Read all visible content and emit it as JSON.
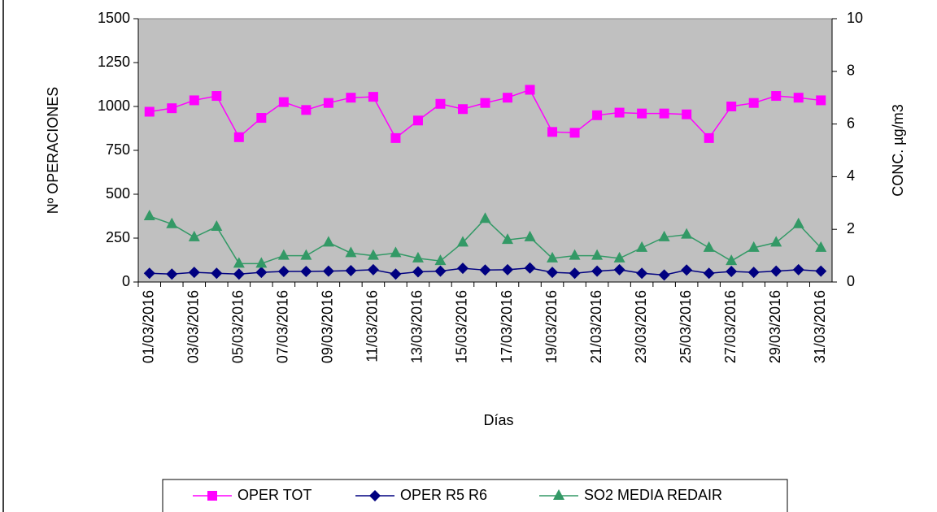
{
  "chart_data": {
    "type": "line",
    "y_label": "Nº OPERACIONES",
    "y2_label": "CONC.  µg/m3",
    "x_label": "Días",
    "categories": [
      "01/03/2016",
      null,
      "03/03/2016",
      null,
      "05/03/2016",
      null,
      "07/03/2016",
      null,
      "09/03/2016",
      null,
      "11/03/2016",
      null,
      "13/03/2016",
      null,
      "15/03/2016",
      null,
      "17/03/2016",
      null,
      "19/03/2016",
      null,
      "21/03/2016",
      null,
      "23/03/2016",
      null,
      "25/03/2016",
      null,
      "27/03/2016",
      null,
      "29/03/2016",
      null,
      "31/03/2016"
    ],
    "series": [
      {
        "name": "OPER TOT",
        "color": "#ff00ff",
        "marker": "square",
        "values": [
          970,
          990,
          1035,
          1060,
          825,
          935,
          1025,
          980,
          1020,
          1050,
          1055,
          820,
          920,
          1015,
          985,
          1020,
          1050,
          1095,
          855,
          850,
          950,
          965,
          960,
          960,
          955,
          820,
          1000,
          1020,
          1060,
          1050,
          1035
        ]
      },
      {
        "name": "OPER R5 R6",
        "color": "#000080",
        "marker": "diamond",
        "values": [
          50,
          45,
          55,
          50,
          45,
          55,
          60,
          60,
          62,
          65,
          70,
          45,
          58,
          62,
          78,
          68,
          70,
          80,
          55,
          50,
          62,
          70,
          50,
          40,
          68,
          50,
          60,
          55,
          62,
          70,
          62
        ]
      },
      {
        "name": "SO2 MEDIA REDAIR",
        "color": "#339966",
        "marker": "triangle",
        "axis": "y2",
        "values": [
          2.5,
          2.2,
          1.7,
          2.1,
          0.7,
          0.7,
          1.0,
          1.0,
          1.5,
          1.1,
          1.0,
          1.1,
          0.9,
          0.8,
          1.5,
          2.4,
          1.6,
          1.7,
          0.9,
          1.0,
          1.0,
          0.9,
          1.3,
          1.7,
          1.8,
          1.3,
          0.8,
          1.3,
          1.5,
          2.2,
          1.3
        ]
      }
    ],
    "ylim": [
      0,
      1500
    ],
    "yticks": [
      0,
      250,
      500,
      750,
      1000,
      1250,
      1500
    ],
    "y2lim": [
      0,
      10
    ],
    "y2ticks": [
      0,
      2,
      4,
      6,
      8,
      10
    ],
    "grid": false,
    "legend": "bottom",
    "plot_background": "#c0c0c0"
  }
}
